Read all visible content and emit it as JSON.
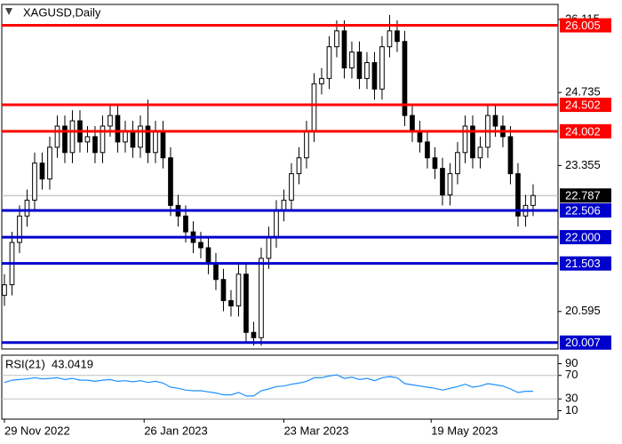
{
  "chart_data": {
    "type": "candlestick",
    "title": "XAGUSD,Daily",
    "xlim": [
      -0.35,
      73.3
    ],
    "xticks": [
      {
        "value": 0,
        "label": "29 Nov 2022"
      },
      {
        "value": 18.5,
        "label": "26 Jan 2023"
      },
      {
        "value": 37,
        "label": "23 Mar 2023"
      },
      {
        "value": 56.5,
        "label": "19 May 2023"
      }
    ],
    "ylim": [
      19.886,
      26.4
    ],
    "yticks": [
      26.115,
      24.735,
      23.355,
      20.595
    ],
    "up_color": "#ffffff",
    "down_color": "#000000",
    "wick_color": "#000000",
    "open": [
      20.9,
      21.1,
      21.9,
      22.4,
      22.7,
      23.4,
      23.1,
      23.7,
      24.1,
      23.6,
      24.2,
      23.8,
      23.9,
      23.6,
      24.1,
      24.3,
      23.8,
      24.0,
      23.7,
      24.1,
      23.6,
      24.0,
      23.5,
      22.6,
      22.4,
      22.1,
      21.9,
      21.8,
      21.5,
      21.2,
      20.8,
      20.7,
      21.3,
      20.2,
      20.1,
      21.6,
      22.0,
      22.5,
      22.7,
      23.2,
      23.5,
      24.0,
      24.9,
      25.0,
      25.6,
      25.9,
      25.2,
      25.5,
      25.0,
      25.3,
      24.8,
      25.6,
      25.9,
      25.7,
      24.3,
      24.0,
      23.8,
      23.5,
      23.3,
      22.8,
      23.2,
      23.6,
      24.1,
      23.5,
      23.7,
      24.3,
      24.1,
      23.9,
      23.2,
      22.4,
      22.6
    ],
    "high": [
      21.3,
      22.1,
      22.6,
      22.9,
      23.6,
      23.6,
      23.9,
      24.3,
      24.3,
      24.4,
      24.4,
      24.1,
      24.1,
      24.3,
      24.5,
      24.5,
      24.2,
      24.2,
      24.3,
      24.6,
      24.2,
      24.2,
      23.7,
      22.8,
      22.6,
      22.3,
      22.1,
      22.0,
      21.7,
      21.4,
      21.0,
      21.5,
      21.5,
      20.4,
      21.8,
      22.2,
      22.7,
      22.9,
      23.4,
      23.7,
      24.2,
      25.1,
      25.2,
      25.8,
      26.1,
      26.1,
      25.7,
      25.7,
      25.5,
      25.5,
      25.8,
      26.2,
      26.1,
      25.9,
      24.5,
      24.2,
      24.0,
      23.7,
      23.5,
      23.4,
      23.8,
      24.3,
      24.3,
      23.9,
      24.5,
      24.5,
      24.3,
      24.1,
      23.4,
      22.8,
      23.0
    ],
    "low": [
      20.7,
      20.9,
      21.7,
      22.2,
      22.5,
      22.9,
      22.9,
      23.5,
      23.4,
      23.4,
      23.6,
      23.6,
      23.4,
      23.4,
      23.9,
      23.6,
      23.6,
      23.5,
      23.5,
      23.4,
      23.4,
      23.3,
      22.4,
      22.2,
      21.9,
      21.7,
      21.6,
      21.3,
      21.0,
      20.6,
      20.5,
      20.5,
      20.0,
      19.95,
      19.95,
      21.4,
      21.8,
      22.3,
      22.5,
      23.0,
      23.3,
      23.8,
      24.7,
      24.8,
      25.4,
      25.0,
      25.0,
      24.8,
      24.8,
      24.6,
      24.6,
      25.4,
      25.5,
      24.1,
      23.8,
      23.6,
      23.3,
      23.1,
      22.6,
      22.6,
      23.0,
      23.4,
      23.3,
      23.3,
      23.5,
      23.9,
      23.7,
      23.0,
      22.2,
      22.2,
      22.4
    ],
    "close": [
      21.1,
      21.9,
      22.4,
      22.7,
      23.4,
      23.1,
      23.7,
      24.1,
      23.6,
      24.2,
      23.8,
      23.9,
      23.6,
      24.1,
      24.3,
      23.8,
      24.0,
      23.7,
      24.1,
      23.6,
      24.0,
      23.5,
      22.6,
      22.4,
      22.1,
      21.9,
      21.8,
      21.5,
      21.2,
      20.8,
      20.7,
      21.3,
      20.2,
      20.1,
      21.6,
      22.0,
      22.5,
      22.7,
      23.2,
      23.5,
      24.0,
      24.9,
      25.0,
      25.6,
      25.9,
      25.2,
      25.5,
      25.0,
      25.3,
      24.8,
      25.6,
      25.9,
      25.7,
      24.3,
      24.0,
      23.8,
      23.5,
      23.3,
      22.8,
      23.2,
      23.6,
      24.1,
      23.5,
      23.7,
      24.3,
      24.1,
      23.9,
      23.2,
      22.4,
      22.6,
      22.787
    ],
    "current_price": 22.787,
    "levels": [
      {
        "value": 26.005,
        "color": "#ff0000"
      },
      {
        "value": 24.502,
        "color": "#ff0000"
      },
      {
        "value": 24.002,
        "color": "#ff0000"
      },
      {
        "value": 22.506,
        "color": "#0000cc"
      },
      {
        "value": {
          "value": 22,
          "label": "22.000"
        },
        "color": "#0000cc"
      },
      {
        "value": 21.503,
        "color": "#0000cc"
      },
      {
        "value": 20.007,
        "color": "#0000cc"
      }
    ],
    "rsi": {
      "label": "RSI(21)",
      "color": "#1e90ff",
      "ylim": [
        -4.4,
        104.4
      ],
      "yticks": [
        90,
        70,
        30,
        10
      ],
      "levels": [
        70,
        30
      ],
      "values": [
        58,
        62,
        63,
        64,
        66,
        64,
        65,
        66,
        63,
        65,
        62,
        62,
        60,
        62,
        63,
        60,
        61,
        59,
        61,
        58,
        60,
        57,
        50,
        48,
        45,
        44,
        44,
        42,
        40,
        37,
        37,
        41,
        35,
        35,
        44,
        47,
        51,
        52,
        55,
        57,
        60,
        66,
        66,
        69,
        71,
        65,
        67,
        63,
        65,
        61,
        66,
        68,
        66,
        56,
        54,
        52,
        50,
        48,
        45,
        48,
        51,
        55,
        50,
        52,
        56,
        54,
        52,
        47,
        41,
        43,
        43.0419
      ]
    }
  }
}
